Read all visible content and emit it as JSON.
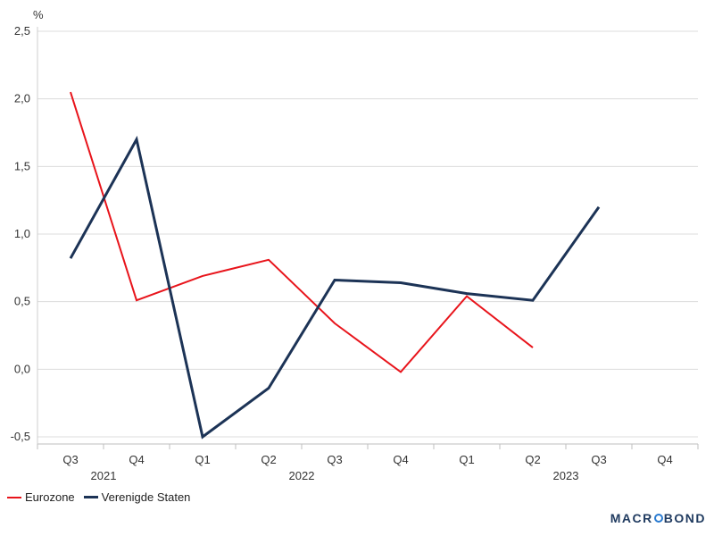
{
  "chart_data": {
    "type": "line",
    "ylabel": "%",
    "ylim": [
      -0.5,
      2.5
    ],
    "yticks": [
      "2,5",
      "2,0",
      "1,5",
      "1,0",
      "0,5",
      "0,0",
      "-0,5"
    ],
    "ytick_values": [
      2.5,
      2.0,
      1.5,
      1.0,
      0.5,
      0.0,
      -0.5
    ],
    "categories": [
      "Q3",
      "Q4",
      "Q1",
      "Q2",
      "Q3",
      "Q4",
      "Q1",
      "Q2",
      "Q3",
      "Q4"
    ],
    "years": [
      "2021",
      "2022",
      "2023"
    ],
    "grid": true,
    "legend_position": "bottom-left",
    "series": [
      {
        "name": "Eurozone",
        "color": "#e8141b",
        "values": [
          2.05,
          0.51,
          0.69,
          0.81,
          0.34,
          -0.02,
          0.54,
          0.16,
          null,
          null
        ]
      },
      {
        "name": "Verenigde Staten",
        "color": "#1c3356",
        "values": [
          0.82,
          1.7,
          -0.5,
          -0.14,
          0.66,
          0.64,
          0.56,
          0.51,
          1.2,
          null
        ]
      }
    ]
  },
  "brand": {
    "left": "MACR",
    "right": "BOND"
  }
}
